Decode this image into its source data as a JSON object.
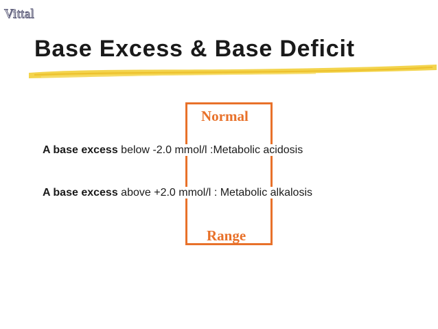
{
  "watermark": "Vittal",
  "title": "Base Excess & Base Deficit",
  "colors": {
    "accent": "#e8712a",
    "underline": "#f2cf3a",
    "text": "#1a1a1a"
  },
  "range_box": {
    "top_label": "Normal",
    "bottom_label": "Range"
  },
  "rows": [
    {
      "bold_label": "A base excess",
      "relation": "below",
      "value": "-2.0 mmol/l",
      "separator": ":",
      "result": "Metabolic acidosis"
    },
    {
      "bold_label": "A base excess",
      "relation": "above",
      "value": "+2.0 mmol/l",
      "separator": ":",
      "result": "Metabolic alkalosis"
    }
  ]
}
